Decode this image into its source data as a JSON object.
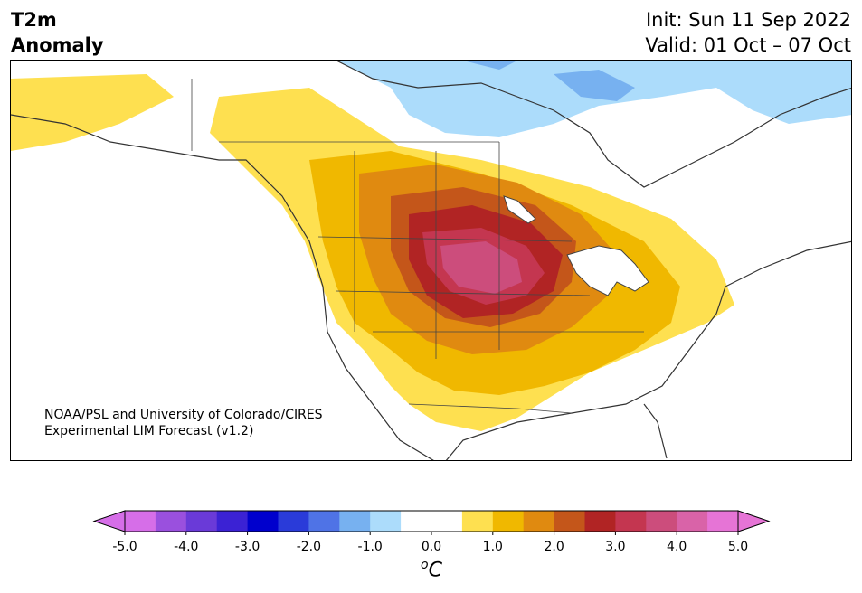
{
  "title": {
    "line1": "T2m",
    "line2": "Anomaly"
  },
  "init": "Init: Sun 11 Sep 2022",
  "valid": "Valid: 01 Oct – 07 Oct",
  "credit": {
    "line1": "NOAA/PSL and University of Colorado/CIRES",
    "line2": "Experimental LIM Forecast (v1.2)"
  },
  "colorbar": {
    "ticks": [
      "-5.0",
      "-4.0",
      "-3.0",
      "-2.0",
      "-1.0",
      "0.0",
      "1.0",
      "2.0",
      "3.0",
      "4.0",
      "5.0"
    ],
    "unit": "C",
    "unit_prefix": "o",
    "colors": [
      "#d66ee8",
      "#9a50de",
      "#6a3ad8",
      "#3b22d4",
      "#0000cd",
      "#2a3bd9",
      "#4f73e6",
      "#77b1f0",
      "#acdcfb",
      "#ffffff",
      "#ffffff",
      "#fee050",
      "#f0b800",
      "#e08a10",
      "#c4561a",
      "#b12424",
      "#c43650",
      "#cc4d7c",
      "#d963a8",
      "#e674d6"
    ],
    "extend_low": "#d66ee8",
    "extend_high": "#e674d6"
  },
  "map": {
    "region": "North America",
    "palette": {
      "warm1": "#fee050",
      "warm2": "#f0b800",
      "warm3": "#e08a10",
      "warm4": "#c4561a",
      "warm5": "#b12424",
      "warm6": "#c43650",
      "warm7": "#cc4d7c",
      "cool1": "#acdcfb",
      "cool2": "#77b1f0",
      "lake": "#ffffff"
    }
  }
}
